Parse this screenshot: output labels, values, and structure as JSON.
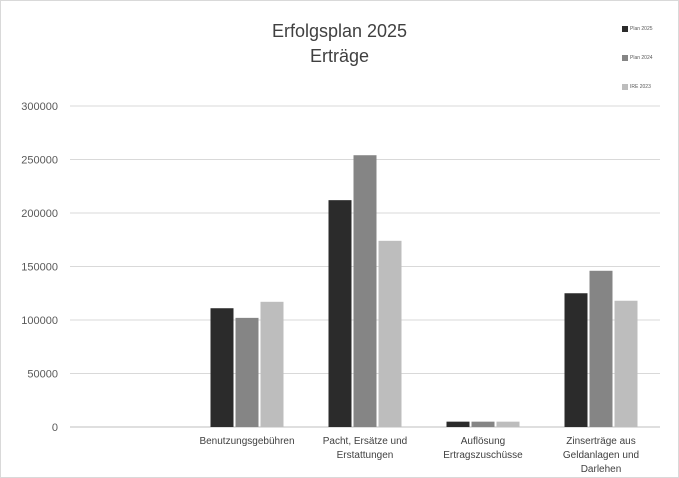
{
  "chart_data": {
    "type": "bar",
    "title": "Erfolgsplan 2025",
    "subtitle": "Erträge",
    "categories": [
      "",
      "Benutzungsgebühren",
      "Pacht, Ersätze und Erstattungen",
      "Auflösung Ertragszuschüsse",
      "Zinserträge aus Geldanlagen und Darlehen"
    ],
    "category_lines": [
      [],
      [
        "Benutzungsgebühren"
      ],
      [
        "Pacht, Ersätze und",
        "Erstattungen"
      ],
      [
        "Auflösung",
        "Ertragszuschüsse"
      ],
      [
        "Zinserträge aus",
        "Geldanlagen und",
        "Darlehen"
      ]
    ],
    "series": [
      {
        "name": "Plan 2025",
        "color": "#2b2b2b",
        "values": [
          0,
          111000,
          212000,
          5000,
          125000
        ]
      },
      {
        "name": "Plan 2024",
        "color": "#858585",
        "values": [
          0,
          102000,
          254000,
          5000,
          146000
        ]
      },
      {
        "name": "IRE 2023",
        "color": "#bdbdbd",
        "values": [
          0,
          117000,
          174000,
          5000,
          118000
        ]
      }
    ],
    "ylim": [
      0,
      300000
    ],
    "yticks": [
      "300000",
      "250000",
      "200000",
      "150000",
      "100000",
      "50000",
      "0"
    ],
    "ytick_values": [
      300000,
      250000,
      200000,
      150000,
      100000,
      50000,
      0
    ],
    "grid": true,
    "legend_position": "top-right"
  }
}
